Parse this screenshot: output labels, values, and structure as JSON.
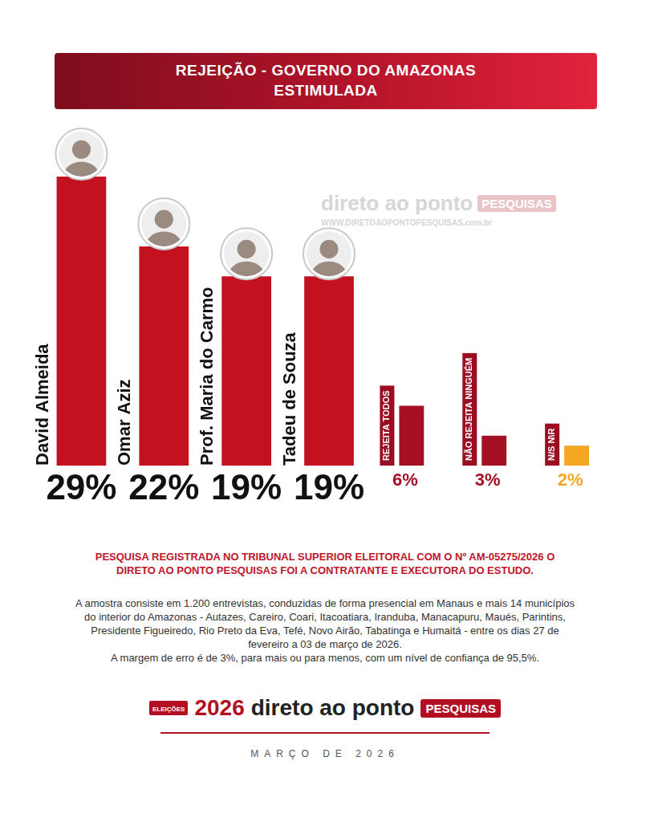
{
  "header": {
    "title": "REJEIÇÃO - GOVERNO DO AMAZONAS",
    "subtitle": "ESTIMULADA"
  },
  "watermark": {
    "brand": "direto ao ponto",
    "tag": "PESQUISAS",
    "url": "WWW.DIRETOAOPONTOPESQUISAS.com.br"
  },
  "chart_data": {
    "type": "bar",
    "categories": [
      "David Almeida",
      "Omar Aziz",
      "Prof. Maria do Carmo",
      "Tadeu de Souza",
      "REJEITA TODOS",
      "NÃO REJEITA NINGUÉM",
      "N/S N\\R"
    ],
    "values": [
      29,
      22,
      19,
      19,
      6,
      3,
      2
    ],
    "value_labels": [
      "29%",
      "22%",
      "19%",
      "19%",
      "6%",
      "3%",
      "2%"
    ],
    "colors": [
      "#c4111f",
      "#c4111f",
      "#c4111f",
      "#c4111f",
      "#a50f24",
      "#a50f24",
      "#f5a623"
    ],
    "ylim": [
      0,
      29
    ],
    "data_labels": true,
    "tick_labels": false,
    "grid": false
  },
  "footer": {
    "registration": "PESQUISA REGISTRADA NO TRIBUNAL SUPERIOR ELEITORAL COM O Nº AM-05275/2026 O DIRETO AO PONTO PESQUISAS FOI A CONTRATANTE E EXECUTORA DO ESTUDO.",
    "methodology": [
      "A amostra consiste em 1.200 entrevistas, conduzidas de forma presencial em Manaus e mais 14 municípios do interior do Amazonas - Autazes, Careiro, Coari, Itacoatiara, Iranduba, Manacapuru, Maués, Parintins, Presidente Figueiredo, Rio Preto da Eva, Tefé, Novo Airão, Tabatinga e Humaitá - entre os dias 27 de fevereiro a 03 de março de 2026.",
      "A margem de erro é de 3%, para mais ou para menos, com um nível de confiança de 95,5%."
    ]
  },
  "logo": {
    "badge": "ELEIÇÕES",
    "year": "2026",
    "brand": "direto ao ponto",
    "tag": "PESQUISAS",
    "date": "MARÇO DE 2026"
  }
}
